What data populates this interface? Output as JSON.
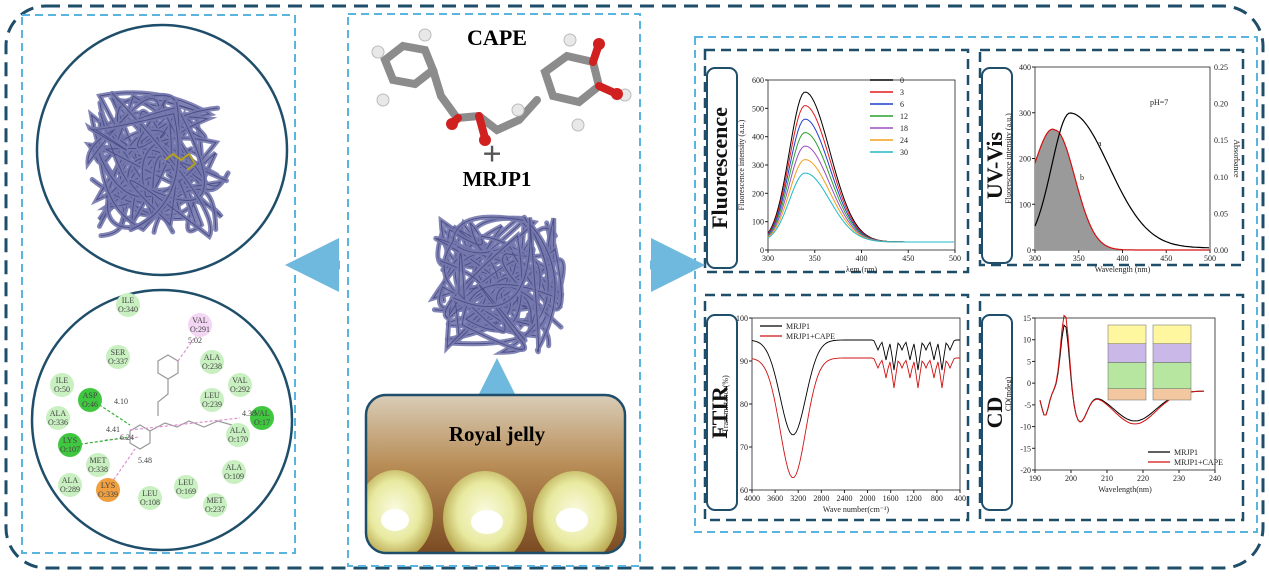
{
  "center": {
    "cape": "CAPE",
    "plus": "+",
    "mrjp1": "MRJP1",
    "royal_jelly": "Royal jelly"
  },
  "docking": {
    "residues": [
      {
        "name": "VAL",
        "id": "O:291"
      },
      {
        "name": "ILE",
        "id": "O:340"
      },
      {
        "name": "ALA",
        "id": "O:238"
      },
      {
        "name": "SER",
        "id": "O:337"
      },
      {
        "name": "ILE",
        "id": "O:50"
      },
      {
        "name": "VAL",
        "id": "O:292"
      },
      {
        "name": "LEU",
        "id": "O:239"
      },
      {
        "name": "ASP",
        "id": "O:46"
      },
      {
        "name": "ALA",
        "id": "O:336"
      },
      {
        "name": "VAL",
        "id": "O:17"
      },
      {
        "name": "ALA",
        "id": "O:170"
      },
      {
        "name": "LYS",
        "id": "O:107"
      },
      {
        "name": "MET",
        "id": "O:338"
      },
      {
        "name": "ALA",
        "id": "O:289"
      },
      {
        "name": "LYS",
        "id": "O:339"
      },
      {
        "name": "ALA",
        "id": "O:109"
      },
      {
        "name": "LEU",
        "id": "O:169"
      },
      {
        "name": "LEU",
        "id": "O:108"
      },
      {
        "name": "MET",
        "id": "O:237"
      }
    ],
    "distances": [
      "5.02",
      "4.10",
      "4.41",
      "6.24",
      "5.48",
      "4.38"
    ]
  },
  "panels": {
    "fluorescence": {
      "label": "Fluorescence",
      "ylabel": "Fluorescence intensity (a.u.)",
      "xlabel": "λem (nm)",
      "xticks": [
        "300",
        "350",
        "400",
        "450",
        "500"
      ],
      "yticks": [
        "0",
        "100",
        "200",
        "300",
        "400",
        "500",
        "600"
      ],
      "series": [
        {
          "name": "0",
          "color": "#000000"
        },
        {
          "name": "3",
          "color": "#e41a1c"
        },
        {
          "name": "6",
          "color": "#1f3fd0"
        },
        {
          "name": "12",
          "color": "#2ca02c"
        },
        {
          "name": "18",
          "color": "#9b4fc4"
        },
        {
          "name": "24",
          "color": "#f0a020"
        },
        {
          "name": "30",
          "color": "#20b8c8"
        }
      ]
    },
    "uvvis": {
      "label": "UV-Vis",
      "ylabel": "Fluorescence intensity (a.u.)",
      "y2label": "Absorbance",
      "xlabel": "Wavelength (nm)",
      "xticks": [
        "300",
        "350",
        "400",
        "450",
        "500"
      ],
      "yticks": [
        "0",
        "100",
        "200",
        "300",
        "400"
      ],
      "y2ticks": [
        "0.00",
        "0.05",
        "0.10",
        "0.15",
        "0.20",
        "0.25"
      ],
      "annotations": [
        "pH=7",
        "a",
        "b"
      ]
    },
    "ftir": {
      "label": "FTIR",
      "ylabel": "Transmittance(%)",
      "xlabel": "Wave number(cm⁻¹)",
      "xticks": [
        "4000",
        "3600",
        "3200",
        "2800",
        "2400",
        "2000",
        "1600",
        "1200",
        "800",
        "400"
      ],
      "yticks": [
        "60",
        "70",
        "80",
        "90",
        "100"
      ],
      "legend": [
        "MRJP1",
        "MRJP1+CAPE"
      ]
    },
    "cd": {
      "label": "CD",
      "ylabel": "CD(mdeg)",
      "xlabel": "Wavelength(nm)",
      "xticks": [
        "190",
        "200",
        "210",
        "220",
        "230",
        "240"
      ],
      "yticks": [
        "-20",
        "-15",
        "-10",
        "-5",
        "0",
        "5",
        "10",
        "15"
      ],
      "legend": [
        "MRJP1",
        "MRJP1+CAPE"
      ]
    }
  }
}
